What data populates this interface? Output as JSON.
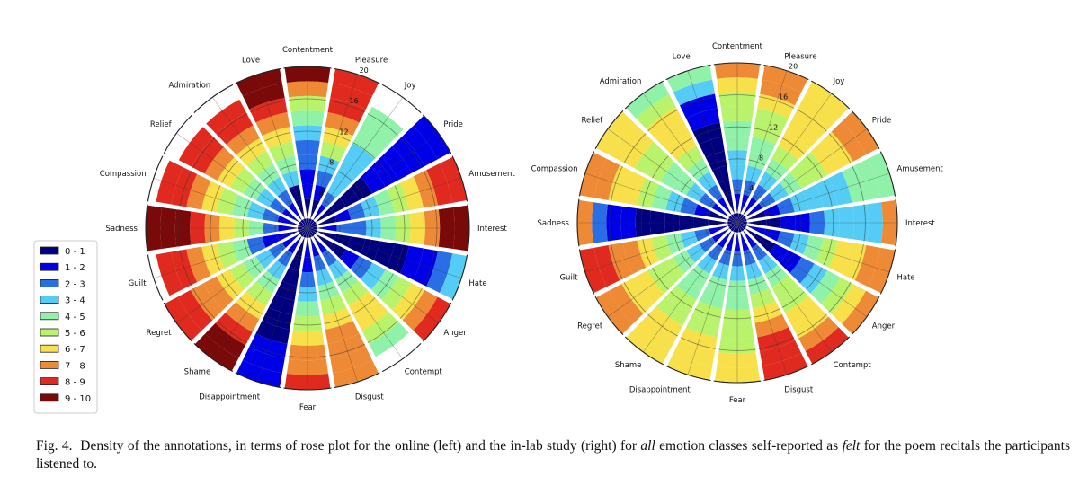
{
  "chart_data": [
    {
      "type": "rose",
      "categories": [
        "Interest",
        "Amusement",
        "Pride",
        "Joy",
        "Pleasure",
        "Contentment",
        "Love",
        "Admiration",
        "Relief",
        "Compassion",
        "Sadness",
        "Guilt",
        "Regret",
        "Shame",
        "Disappointment",
        "Fear",
        "Disgust",
        "Contempt",
        "Anger",
        "Hate"
      ],
      "values": [
        20,
        20,
        20,
        17,
        20,
        20,
        20,
        18,
        18,
        19,
        20,
        19,
        20,
        20,
        20,
        20,
        20,
        18,
        20,
        20
      ],
      "radial_ticks": [
        "4",
        "8",
        "12",
        "16",
        "20"
      ],
      "rlim": [
        0,
        20
      ],
      "legend": {
        "position": "left",
        "entries": [
          "0 - 1",
          "1 - 2",
          "2 - 3",
          "3 - 4",
          "4 - 5",
          "5 - 6",
          "6 - 7",
          "7 - 8",
          "8 - 9",
          "9 - 10"
        ],
        "colors": [
          "#00007f",
          "#0000e6",
          "#2a6ee6",
          "#55ccf5",
          "#90f2a8",
          "#b9f26b",
          "#f7e04a",
          "#ee8a35",
          "#e12a1f",
          "#7a0a0a"
        ]
      }
    },
    {
      "type": "rose",
      "categories": [
        "Interest",
        "Amusement",
        "Pride",
        "Joy",
        "Pleasure",
        "Contentment",
        "Love",
        "Admiration",
        "Relief",
        "Compassion",
        "Sadness",
        "Guilt",
        "Regret",
        "Shame",
        "Disappointment",
        "Fear",
        "Disgust",
        "Contempt",
        "Anger",
        "Hate"
      ],
      "values": [
        20,
        20,
        20,
        20,
        20,
        20,
        20,
        20,
        20,
        20,
        20,
        20,
        20,
        20,
        20,
        20,
        20,
        20,
        20,
        20
      ],
      "radial_ticks": [
        "4",
        "8",
        "12",
        "16",
        "20"
      ],
      "rlim": [
        0,
        20
      ]
    }
  ],
  "caption": {
    "prefix": "Fig. 4.",
    "text1": "Density of the annotations, in terms of rose plot for the online (left) and the in-lab study (right) for ",
    "em1": "all",
    "text2": " emotion classes self-reported as ",
    "em2": "felt",
    "text3": " for the poem recitals the participants listened to."
  }
}
